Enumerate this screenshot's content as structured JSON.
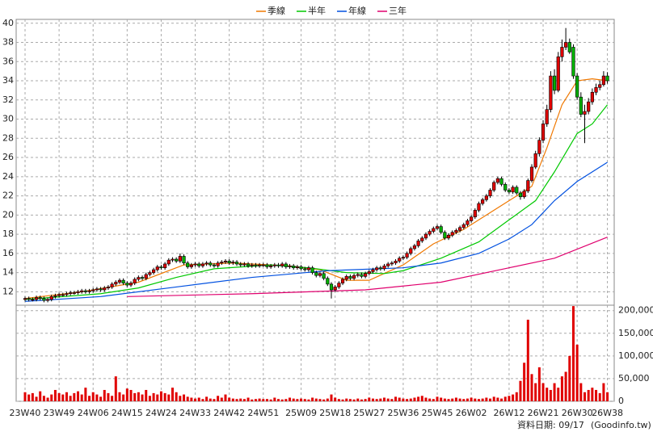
{
  "chart_data": {
    "type": "candlestick",
    "xlim": [
      -2.35,
      155.8
    ],
    "xticks": [
      {
        "value": 0,
        "label": "23W40"
      },
      {
        "value": 9,
        "label": "23W49"
      },
      {
        "value": 18,
        "label": "24W06"
      },
      {
        "value": 27,
        "label": "24W15"
      },
      {
        "value": 36,
        "label": "24W24"
      },
      {
        "value": 45,
        "label": "24W33"
      },
      {
        "value": 54,
        "label": "24W42"
      },
      {
        "value": 63,
        "label": "24W51"
      },
      {
        "value": 73,
        "label": "25W09"
      },
      {
        "value": 82,
        "label": "25W18"
      },
      {
        "value": 91,
        "label": "25W27"
      },
      {
        "value": 100,
        "label": "25W36"
      },
      {
        "value": 109,
        "label": "25W45"
      },
      {
        "value": 118,
        "label": "26W02"
      },
      {
        "value": 128,
        "label": "26W12"
      },
      {
        "value": 137,
        "label": "26W21"
      },
      {
        "value": 146,
        "label": "26W30"
      },
      {
        "value": 154,
        "label": "26W38"
      }
    ],
    "ylim": [
      10.6,
      40.4
    ],
    "yticks": [
      12,
      14,
      16,
      18,
      20,
      22,
      24,
      26,
      28,
      30,
      32,
      34,
      36,
      38,
      40
    ],
    "grid": true,
    "up_color": "#e00000",
    "down_color": "#00b000",
    "candles": {
      "open": [
        11.2,
        11.3,
        11.2,
        11.2,
        11.4,
        11.3,
        11.1,
        11.2,
        11.5,
        11.6,
        11.7,
        11.7,
        11.8,
        11.9,
        11.9,
        12.0,
        12.1,
        12.0,
        12.1,
        12.2,
        12.3,
        12.2,
        12.4,
        12.5,
        12.8,
        13.0,
        13.2,
        12.9,
        12.7,
        12.9,
        13.3,
        13.5,
        13.4,
        13.8,
        14.0,
        14.3,
        14.6,
        14.5,
        14.9,
        15.3,
        15.4,
        15.2,
        15.7,
        15.0,
        14.6,
        14.8,
        14.9,
        14.7,
        14.9,
        15.0,
        14.8,
        14.7,
        15.0,
        15.1,
        15.2,
        15.0,
        15.1,
        14.9,
        14.8,
        14.9,
        14.7,
        14.8,
        14.7,
        14.8,
        14.8,
        14.6,
        14.7,
        14.8,
        14.7,
        14.9,
        14.6,
        14.7,
        14.5,
        14.6,
        14.4,
        14.3,
        14.5,
        14.0,
        13.7,
        13.9,
        13.4,
        12.8,
        12.2,
        12.5,
        12.9,
        13.3,
        13.6,
        13.4,
        13.7,
        13.8,
        13.6,
        13.9,
        14.1,
        14.3,
        14.5,
        14.4,
        14.7,
        14.9,
        15.0,
        15.2,
        15.5,
        15.6,
        16.0,
        16.5,
        16.8,
        17.3,
        17.6,
        18.0,
        18.3,
        18.6,
        18.8,
        18.2,
        17.6,
        17.9,
        18.2,
        18.4,
        18.7,
        19.0,
        19.4,
        19.8,
        20.5,
        21.2,
        21.6,
        22.0,
        22.6,
        23.4,
        23.8,
        23.2,
        22.6,
        22.4,
        22.9,
        22.3,
        21.9,
        22.5,
        23.6,
        25.0,
        26.4,
        27.8,
        29.5,
        31.0,
        34.5,
        33.0,
        36.5,
        37.5,
        38.0,
        37.5,
        34.5,
        32.3,
        30.5,
        30.8,
        31.8,
        32.8,
        33.3,
        33.6,
        34.5
      ],
      "high": [
        11.5,
        11.5,
        11.4,
        11.6,
        11.6,
        11.5,
        11.4,
        11.7,
        11.8,
        11.9,
        11.9,
        12.0,
        12.1,
        12.1,
        12.2,
        12.3,
        12.3,
        12.3,
        12.4,
        12.5,
        12.5,
        12.6,
        12.7,
        13.0,
        13.2,
        13.4,
        13.4,
        13.1,
        13.1,
        13.5,
        13.7,
        13.7,
        14.0,
        14.2,
        14.5,
        14.8,
        14.8,
        15.1,
        15.5,
        15.6,
        15.6,
        16.0,
        15.9,
        15.2,
        15.0,
        15.1,
        15.1,
        15.1,
        15.2,
        15.2,
        15.0,
        15.2,
        15.3,
        15.4,
        15.4,
        15.3,
        15.3,
        15.1,
        15.1,
        15.1,
        15.0,
        15.0,
        15.0,
        15.0,
        15.0,
        14.9,
        15.0,
        15.0,
        15.1,
        15.1,
        14.9,
        14.9,
        14.8,
        14.8,
        14.6,
        14.7,
        14.7,
        14.2,
        14.1,
        14.1,
        13.6,
        13.0,
        12.7,
        13.1,
        13.5,
        13.8,
        13.8,
        13.9,
        14.0,
        14.0,
        14.1,
        14.3,
        14.5,
        14.7,
        14.7,
        14.9,
        15.1,
        15.2,
        15.4,
        15.7,
        15.8,
        16.2,
        16.7,
        17.0,
        17.5,
        17.8,
        18.2,
        18.5,
        18.8,
        19.0,
        19.0,
        18.4,
        18.1,
        18.4,
        18.6,
        18.9,
        19.2,
        19.6,
        20.0,
        20.7,
        21.4,
        21.8,
        22.2,
        22.8,
        23.6,
        24.0,
        24.0,
        23.4,
        22.8,
        23.1,
        23.1,
        22.5,
        22.7,
        23.8,
        25.3,
        26.7,
        28.1,
        29.9,
        31.5,
        35.0,
        35.2,
        37.0,
        38.3,
        39.5,
        38.4,
        37.8,
        34.8,
        32.8,
        31.5,
        32.2,
        33.2,
        33.7,
        34.0,
        35.0,
        34.9
      ],
      "low": [
        11.0,
        11.0,
        11.0,
        11.0,
        11.1,
        10.9,
        10.9,
        11.0,
        11.3,
        11.4,
        11.5,
        11.5,
        11.6,
        11.7,
        11.7,
        11.8,
        11.8,
        11.8,
        11.9,
        12.0,
        12.0,
        12.0,
        12.2,
        12.3,
        12.6,
        12.8,
        12.7,
        12.5,
        12.5,
        12.7,
        13.1,
        13.2,
        13.2,
        13.6,
        13.8,
        14.1,
        14.3,
        14.3,
        14.7,
        15.1,
        15.0,
        15.0,
        14.8,
        14.4,
        14.4,
        14.6,
        14.5,
        14.5,
        14.7,
        14.6,
        14.5,
        14.5,
        14.8,
        14.9,
        14.8,
        14.8,
        14.7,
        14.6,
        14.6,
        14.5,
        14.5,
        14.5,
        14.5,
        14.6,
        14.4,
        14.4,
        14.5,
        14.5,
        14.5,
        14.4,
        14.4,
        14.3,
        14.3,
        14.2,
        14.1,
        14.1,
        13.8,
        13.5,
        13.5,
        13.2,
        12.6,
        11.3,
        12.0,
        12.3,
        12.7,
        13.1,
        13.2,
        13.2,
        13.5,
        13.4,
        13.4,
        13.7,
        13.9,
        14.1,
        14.2,
        14.2,
        14.5,
        14.7,
        14.8,
        15.0,
        15.3,
        15.4,
        15.8,
        16.3,
        16.6,
        17.1,
        17.4,
        17.8,
        18.1,
        18.4,
        18.0,
        17.4,
        17.4,
        17.7,
        18.0,
        18.2,
        18.5,
        18.8,
        19.2,
        19.6,
        20.3,
        21.0,
        21.4,
        21.8,
        22.4,
        23.2,
        23.0,
        22.4,
        22.2,
        22.2,
        22.1,
        21.6,
        21.7,
        22.3,
        23.4,
        24.8,
        26.1,
        27.5,
        29.2,
        30.7,
        32.6,
        32.8,
        36.0,
        37.2,
        36.8,
        34.2,
        32.0,
        30.2,
        27.5,
        30.5,
        31.5,
        32.5,
        33.0,
        33.4,
        33.7
      ],
      "close": [
        11.3,
        11.2,
        11.2,
        11.4,
        11.3,
        11.1,
        11.2,
        11.5,
        11.6,
        11.7,
        11.7,
        11.8,
        11.9,
        11.9,
        12.0,
        12.1,
        12.0,
        12.1,
        12.2,
        12.3,
        12.2,
        12.4,
        12.5,
        12.8,
        13.0,
        13.2,
        12.9,
        12.7,
        12.9,
        13.3,
        13.5,
        13.4,
        13.8,
        14.0,
        14.3,
        14.6,
        14.5,
        14.9,
        15.3,
        15.4,
        15.2,
        15.7,
        15.0,
        14.6,
        14.8,
        14.9,
        14.7,
        14.9,
        15.0,
        14.8,
        14.7,
        15.0,
        15.1,
        15.2,
        15.0,
        15.1,
        14.9,
        14.8,
        14.9,
        14.7,
        14.8,
        14.7,
        14.8,
        14.8,
        14.6,
        14.7,
        14.8,
        14.7,
        14.9,
        14.6,
        14.7,
        14.5,
        14.6,
        14.4,
        14.3,
        14.5,
        14.0,
        13.7,
        13.9,
        13.4,
        12.8,
        12.2,
        12.5,
        12.9,
        13.3,
        13.6,
        13.4,
        13.7,
        13.8,
        13.6,
        13.9,
        14.1,
        14.3,
        14.5,
        14.4,
        14.7,
        14.9,
        15.0,
        15.2,
        15.5,
        15.6,
        16.0,
        16.5,
        16.8,
        17.3,
        17.6,
        18.0,
        18.3,
        18.6,
        18.8,
        18.2,
        17.6,
        17.9,
        18.2,
        18.4,
        18.7,
        19.0,
        19.4,
        19.8,
        20.5,
        21.2,
        21.6,
        22.0,
        22.6,
        23.4,
        23.8,
        23.2,
        22.6,
        22.4,
        22.9,
        22.3,
        21.9,
        22.5,
        23.6,
        25.0,
        26.4,
        27.8,
        29.5,
        31.0,
        34.5,
        33.0,
        36.5,
        37.5,
        38.0,
        37.0,
        34.5,
        32.3,
        30.5,
        30.8,
        31.8,
        32.8,
        33.3,
        33.6,
        34.5,
        34.0
      ]
    },
    "series": [
      {
        "name": "季線",
        "color": "#f07800",
        "x": [
          0,
          15,
          30,
          42,
          55,
          70,
          78,
          85,
          91,
          100,
          108,
          116,
          124,
          130,
          134,
          138,
          142,
          146,
          150,
          154
        ],
        "values": [
          11.3,
          12.0,
          13.0,
          14.8,
          15.0,
          14.7,
          14.3,
          13.2,
          13.2,
          14.8,
          17.0,
          18.5,
          20.5,
          22.0,
          23.0,
          27.0,
          31.5,
          34.0,
          34.2,
          34.0
        ]
      },
      {
        "name": "半年",
        "color": "#00c800",
        "x": [
          0,
          20,
          30,
          40,
          50,
          65,
          75,
          85,
          95,
          100,
          110,
          120,
          128,
          135,
          140,
          146,
          150,
          154
        ],
        "values": [
          11.2,
          11.8,
          12.4,
          13.5,
          14.4,
          14.8,
          14.5,
          14.0,
          13.9,
          14.2,
          15.5,
          17.2,
          19.5,
          21.5,
          24.5,
          28.5,
          29.5,
          31.5
        ]
      },
      {
        "name": "年線",
        "color": "#0050e0",
        "x": [
          0,
          20,
          40,
          60,
          80,
          100,
          110,
          120,
          128,
          134,
          140,
          146,
          154
        ],
        "values": [
          11.0,
          11.5,
          12.5,
          13.5,
          14.2,
          14.5,
          15.0,
          16.0,
          17.5,
          19.0,
          21.5,
          23.5,
          25.5
        ]
      },
      {
        "name": "三年",
        "color": "#e0006e",
        "x": [
          27,
          60,
          90,
          110,
          128,
          140,
          154
        ],
        "values": [
          11.5,
          11.8,
          12.2,
          13.0,
          14.5,
          15.5,
          17.7
        ]
      }
    ],
    "volume": {
      "color": "#e00000",
      "ylim": [
        0,
        212000
      ],
      "yticks": [
        0,
        {
          "value": 50000,
          "label": "50,000"
        },
        {
          "value": 100000,
          "label": "100,000"
        },
        {
          "value": 150000,
          "label": "150,000"
        },
        {
          "value": 200000,
          "label": "200,000"
        }
      ],
      "values": [
        20000,
        15000,
        18000,
        10000,
        22000,
        12000,
        8000,
        15000,
        25000,
        18000,
        15000,
        20000,
        12000,
        18000,
        22000,
        15000,
        30000,
        12000,
        20000,
        15000,
        10000,
        25000,
        18000,
        12000,
        55000,
        20000,
        15000,
        28000,
        25000,
        18000,
        20000,
        15000,
        25000,
        12000,
        18000,
        15000,
        22000,
        18000,
        15000,
        30000,
        20000,
        12000,
        15000,
        10000,
        8000,
        6000,
        8000,
        5000,
        10000,
        6000,
        5000,
        12000,
        8000,
        15000,
        8000,
        6000,
        5000,
        6000,
        5000,
        8000,
        4000,
        5000,
        6000,
        5000,
        5000,
        4000,
        8000,
        5000,
        4000,
        5000,
        8000,
        6000,
        5000,
        6000,
        5000,
        4000,
        8000,
        6000,
        5000,
        4000,
        6000,
        15000,
        8000,
        5000,
        4000,
        6000,
        5000,
        4000,
        6000,
        4000,
        5000,
        8000,
        6000,
        5000,
        6000,
        8000,
        6000,
        5000,
        10000,
        8000,
        6000,
        5000,
        6000,
        8000,
        10000,
        12000,
        8000,
        6000,
        5000,
        10000,
        8000,
        6000,
        5000,
        6000,
        8000,
        6000,
        5000,
        6000,
        8000,
        6000,
        5000,
        6000,
        8000,
        6000,
        10000,
        8000,
        6000,
        10000,
        12000,
        15000,
        20000,
        45000,
        85000,
        180000,
        60000,
        40000,
        75000,
        40000,
        30000,
        25000,
        40000,
        30000,
        55000,
        65000,
        100000,
        210000,
        125000,
        40000,
        20000,
        25000,
        30000,
        25000,
        18000,
        40000,
        20000
      ]
    },
    "footer": "資料日期: 09/17",
    "source": "(Goodinfo.tw)"
  }
}
